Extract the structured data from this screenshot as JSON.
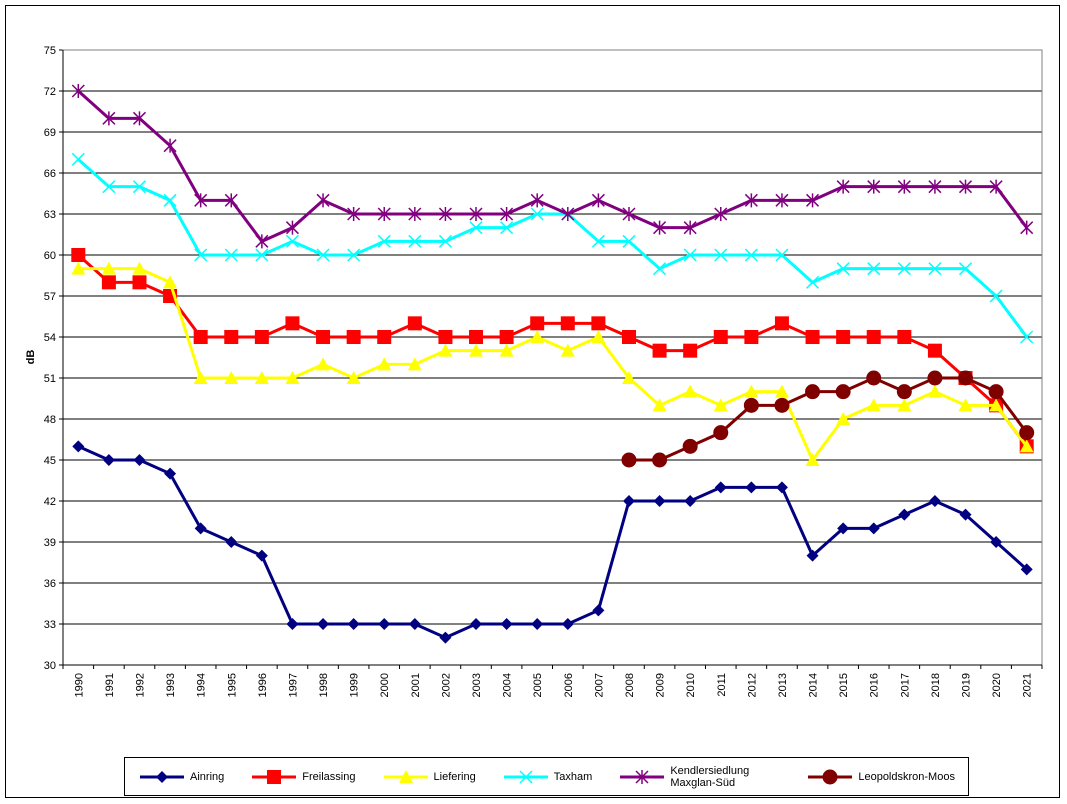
{
  "chart_data": {
    "type": "line",
    "y_label": "dB",
    "categories": [
      "1990",
      "1991",
      "1992",
      "1993",
      "1994",
      "1995",
      "1996",
      "1997",
      "1998",
      "1999",
      "2000",
      "2001",
      "2002",
      "2003",
      "2004",
      "2005",
      "2006",
      "2007",
      "2008",
      "2009",
      "2010",
      "2011",
      "2012",
      "2013",
      "2014",
      "2015",
      "2016",
      "2017",
      "2018",
      "2019",
      "2020",
      "2021"
    ],
    "ylim": [
      30,
      75
    ],
    "yticks": [
      30,
      33,
      36,
      39,
      42,
      45,
      48,
      51,
      54,
      57,
      60,
      63,
      66,
      69,
      72,
      75
    ],
    "grid": true,
    "legend": "bottom",
    "series": [
      {
        "name": "Ainring",
        "color": "#000080",
        "marker": "diamond",
        "values": [
          46,
          45,
          45,
          44,
          40,
          39,
          38,
          33,
          33,
          33,
          33,
          33,
          32,
          33,
          33,
          33,
          33,
          34,
          42,
          42,
          42,
          43,
          43,
          43,
          38,
          40,
          40,
          41,
          42,
          41,
          39,
          37
        ]
      },
      {
        "name": "Freilassing",
        "color": "#ff0000",
        "marker": "square",
        "values": [
          60,
          58,
          58,
          57,
          54,
          54,
          54,
          55,
          54,
          54,
          54,
          55,
          54,
          54,
          54,
          55,
          55,
          55,
          54,
          53,
          53,
          54,
          54,
          55,
          54,
          54,
          54,
          54,
          53,
          51,
          49,
          46
        ]
      },
      {
        "name": "Liefering",
        "color": "#ffff00",
        "marker": "triangle",
        "values": [
          59,
          59,
          59,
          58,
          51,
          51,
          51,
          51,
          52,
          51,
          52,
          52,
          53,
          53,
          53,
          54,
          53,
          54,
          51,
          49,
          50,
          49,
          50,
          50,
          45,
          48,
          49,
          49,
          50,
          49,
          49,
          46
        ]
      },
      {
        "name": "Taxham",
        "color": "#00ffff",
        "marker": "cross",
        "values": [
          67,
          65,
          65,
          64,
          60,
          60,
          60,
          61,
          60,
          60,
          61,
          61,
          61,
          62,
          62,
          63,
          63,
          61,
          61,
          59,
          60,
          60,
          60,
          60,
          58,
          59,
          59,
          59,
          59,
          59,
          57,
          54
        ]
      },
      {
        "name": "Kendlersiedlung Maxglan-Süd",
        "color": "#800080",
        "marker": "star",
        "values": [
          72,
          70,
          70,
          68,
          64,
          64,
          61,
          62,
          64,
          63,
          63,
          63,
          63,
          63,
          63,
          64,
          63,
          64,
          63,
          62,
          62,
          63,
          64,
          64,
          64,
          65,
          65,
          65,
          65,
          65,
          65,
          62
        ]
      },
      {
        "name": "Leopoldskron-Moos",
        "color": "#800000",
        "marker": "circle",
        "values": [
          null,
          null,
          null,
          null,
          null,
          null,
          null,
          null,
          null,
          null,
          null,
          null,
          null,
          null,
          null,
          null,
          null,
          null,
          45,
          45,
          46,
          47,
          49,
          49,
          50,
          50,
          51,
          50,
          51,
          51,
          50,
          47
        ]
      }
    ]
  }
}
